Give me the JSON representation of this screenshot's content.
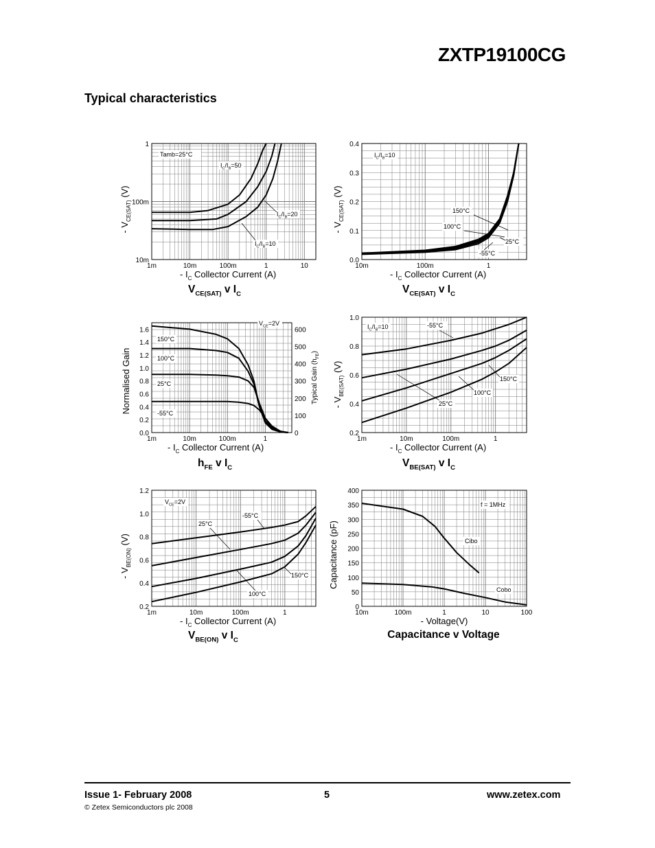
{
  "header": {
    "part_number": "ZXTP19100CG",
    "section_title": "Typical characteristics"
  },
  "footer": {
    "issue": "Issue 1- February 2008",
    "page": "5",
    "website": "www.zetex.com",
    "copyright": "© Zetex Semiconductors plc 2008"
  },
  "chart_data": [
    {
      "id": "vcesat_ic_ratio",
      "type": "line",
      "title": "VCE(SAT) v IC",
      "xlabel": "- IC Collector Current (A)",
      "ylabel": "- VCE(SAT) (V)",
      "xscale": "log",
      "yscale": "log",
      "xlim": [
        0.001,
        20
      ],
      "ylim": [
        0.01,
        1
      ],
      "xticks": [
        [
          "1m",
          0.001
        ],
        [
          "10m",
          0.01
        ],
        [
          "100m",
          0.1
        ],
        [
          "1",
          1
        ],
        [
          "10",
          10
        ]
      ],
      "yticks": [
        [
          "10m",
          0.01
        ],
        [
          "100m",
          0.1
        ],
        [
          "1",
          1
        ]
      ],
      "annotations": [
        "Tamb=25°C",
        "IC/IB=50",
        "IC/IB=20",
        "IC/IB=10"
      ],
      "series": [
        {
          "name": "IC/IB=50",
          "x": [
            0.001,
            0.01,
            0.03,
            0.1,
            0.2,
            0.4,
            0.6,
            0.8,
            1.0
          ],
          "y": [
            0.065,
            0.065,
            0.07,
            0.09,
            0.13,
            0.25,
            0.45,
            0.75,
            1.0
          ]
        },
        {
          "name": "IC/IB=20",
          "x": [
            0.001,
            0.01,
            0.05,
            0.1,
            0.3,
            0.6,
            1.0,
            1.4,
            1.7
          ],
          "y": [
            0.047,
            0.047,
            0.05,
            0.06,
            0.1,
            0.18,
            0.33,
            0.6,
            1.0
          ]
        },
        {
          "name": "IC/IB=10",
          "x": [
            0.001,
            0.01,
            0.04,
            0.1,
            0.3,
            0.6,
            1.0,
            1.5,
            2.0,
            2.5
          ],
          "y": [
            0.034,
            0.033,
            0.033,
            0.037,
            0.055,
            0.08,
            0.13,
            0.25,
            0.5,
            1.0
          ]
        }
      ]
    },
    {
      "id": "vcesat_ic_temp",
      "type": "line",
      "title": "VCE(SAT) v IC",
      "xlabel": "- IC Collector Current (A)",
      "ylabel": "- VCE(SAT) (V)",
      "xscale": "log",
      "yscale": "linear",
      "xlim": [
        0.01,
        4
      ],
      "ylim": [
        0,
        0.4
      ],
      "xticks": [
        [
          "10m",
          0.01
        ],
        [
          "100m",
          0.1
        ],
        [
          "1",
          1
        ]
      ],
      "yticks": [
        [
          "0.0",
          0
        ],
        [
          "0.1",
          0.1
        ],
        [
          "0.2",
          0.2
        ],
        [
          "0.3",
          0.3
        ],
        [
          "0.4",
          0.4
        ]
      ],
      "annotations": [
        "IC/IB=10",
        "150°C",
        "100°C",
        "25°C",
        "-55°C"
      ],
      "series": [
        {
          "name": "150°C",
          "x": [
            0.01,
            0.1,
            0.3,
            0.7,
            1.0,
            1.5,
            2.0,
            2.5,
            3.0
          ],
          "y": [
            0.022,
            0.032,
            0.045,
            0.07,
            0.09,
            0.14,
            0.22,
            0.3,
            0.4
          ]
        },
        {
          "name": "100°C",
          "x": [
            0.01,
            0.1,
            0.3,
            0.7,
            1.0,
            1.5,
            2.0,
            2.5,
            3.0
          ],
          "y": [
            0.021,
            0.03,
            0.042,
            0.065,
            0.085,
            0.135,
            0.215,
            0.3,
            0.4
          ]
        },
        {
          "name": "25°C",
          "x": [
            0.01,
            0.1,
            0.3,
            0.7,
            1.0,
            1.5,
            2.0,
            2.5,
            3.0
          ],
          "y": [
            0.02,
            0.028,
            0.038,
            0.06,
            0.08,
            0.13,
            0.21,
            0.3,
            0.4
          ]
        },
        {
          "name": "-55°C",
          "x": [
            0.01,
            0.1,
            0.3,
            0.7,
            1.0,
            1.5,
            2.0,
            2.5,
            3.0
          ],
          "y": [
            0.018,
            0.025,
            0.034,
            0.055,
            0.075,
            0.125,
            0.2,
            0.29,
            0.4
          ]
        }
      ]
    },
    {
      "id": "hfe_ic",
      "type": "line",
      "title": "hFE v IC",
      "xlabel": "- IC Collector Current (A)",
      "ylabel": "Normalised Gain",
      "y2label": "Typical Gain (hFE)",
      "xscale": "log",
      "yscale": "linear",
      "xlim": [
        0.001,
        5
      ],
      "ylim": [
        0,
        1.7
      ],
      "y2lim": [
        0,
        637.5
      ],
      "xticks": [
        [
          "1m",
          0.001
        ],
        [
          "10m",
          0.01
        ],
        [
          "100m",
          0.1
        ],
        [
          "1",
          1
        ]
      ],
      "yticks": [
        [
          "0.0",
          0
        ],
        [
          "0.2",
          0.2
        ],
        [
          "0.4",
          0.4
        ],
        [
          "0.6",
          0.6
        ],
        [
          "0.8",
          0.8
        ],
        [
          "1.0",
          1.0
        ],
        [
          "1.2",
          1.2
        ],
        [
          "1.4",
          1.4
        ],
        [
          "1.6",
          1.6
        ]
      ],
      "y2ticks": [
        [
          "0",
          0
        ],
        [
          "100",
          0.2667
        ],
        [
          "200",
          0.5333
        ],
        [
          "300",
          0.8
        ],
        [
          "400",
          1.0667
        ],
        [
          "500",
          1.3333
        ],
        [
          "600",
          1.6
        ]
      ],
      "annotations": [
        "VCE=2V",
        "150°C",
        "100°C",
        "25°C",
        "-55°C"
      ],
      "series": [
        {
          "name": "150°C",
          "x": [
            0.001,
            0.01,
            0.05,
            0.1,
            0.2,
            0.35,
            0.5,
            0.7,
            1.0,
            1.5,
            2.5,
            4.0
          ],
          "y": [
            1.65,
            1.6,
            1.52,
            1.45,
            1.3,
            1.05,
            0.8,
            0.4,
            0.15,
            0.05,
            0.01,
            0.0
          ]
        },
        {
          "name": "100°C",
          "x": [
            0.001,
            0.01,
            0.05,
            0.1,
            0.2,
            0.35,
            0.5,
            0.7,
            1.0,
            1.5,
            2.5,
            4.0
          ],
          "y": [
            1.3,
            1.3,
            1.27,
            1.24,
            1.15,
            0.95,
            0.75,
            0.4,
            0.18,
            0.06,
            0.01,
            0.0
          ]
        },
        {
          "name": "25°C",
          "x": [
            0.001,
            0.01,
            0.05,
            0.1,
            0.2,
            0.35,
            0.5,
            0.7,
            1.0,
            1.5,
            2.5,
            4.0
          ],
          "y": [
            0.9,
            0.9,
            0.89,
            0.88,
            0.86,
            0.8,
            0.7,
            0.45,
            0.22,
            0.08,
            0.02,
            0.0
          ]
        },
        {
          "name": "-55°C",
          "x": [
            0.001,
            0.01,
            0.05,
            0.1,
            0.2,
            0.35,
            0.5,
            0.7,
            1.0,
            1.5,
            2.5,
            4.0
          ],
          "y": [
            0.48,
            0.48,
            0.48,
            0.48,
            0.47,
            0.45,
            0.42,
            0.35,
            0.22,
            0.1,
            0.02,
            0.0
          ]
        }
      ]
    },
    {
      "id": "vbesat_ic",
      "type": "line",
      "title": "VBE(SAT) v IC",
      "xlabel": "- IC Collector Current (A)",
      "ylabel": "- VBE(SAT) (V)",
      "xscale": "log",
      "yscale": "linear",
      "xlim": [
        0.001,
        5
      ],
      "ylim": [
        0.2,
        1.0
      ],
      "xticks": [
        [
          "1m",
          0.001
        ],
        [
          "10m",
          0.01
        ],
        [
          "100m",
          0.1
        ],
        [
          "1",
          1
        ]
      ],
      "yticks": [
        [
          "0.2",
          0.2
        ],
        [
          "0.4",
          0.4
        ],
        [
          "0.6",
          0.6
        ],
        [
          "0.8",
          0.8
        ],
        [
          "1.0",
          1.0
        ]
      ],
      "annotations": [
        "IC/IB=10",
        "-55°C",
        "25°C",
        "100°C",
        "150°C"
      ],
      "series": [
        {
          "name": "-55°C",
          "x": [
            0.001,
            0.01,
            0.1,
            0.5,
            1,
            2,
            5
          ],
          "y": [
            0.74,
            0.78,
            0.84,
            0.89,
            0.92,
            0.95,
            1.0
          ]
        },
        {
          "name": "25°C",
          "x": [
            0.001,
            0.01,
            0.1,
            0.5,
            1,
            2,
            5
          ],
          "y": [
            0.58,
            0.64,
            0.71,
            0.77,
            0.8,
            0.84,
            0.91
          ]
        },
        {
          "name": "100°C",
          "x": [
            0.001,
            0.01,
            0.1,
            0.5,
            1,
            2,
            5
          ],
          "y": [
            0.42,
            0.51,
            0.61,
            0.68,
            0.72,
            0.77,
            0.85
          ]
        },
        {
          "name": "150°C",
          "x": [
            0.001,
            0.01,
            0.1,
            0.5,
            1,
            2,
            5
          ],
          "y": [
            0.27,
            0.37,
            0.48,
            0.57,
            0.62,
            0.68,
            0.79
          ]
        }
      ]
    },
    {
      "id": "vbeon_ic",
      "type": "line",
      "title": "VBE(ON) v IC",
      "xlabel": "- IC Collector Current (A)",
      "ylabel": "- VBE(ON) (V)",
      "xscale": "log",
      "yscale": "linear",
      "xlim": [
        0.001,
        5
      ],
      "ylim": [
        0.2,
        1.2
      ],
      "xticks": [
        [
          "1m",
          0.001
        ],
        [
          "10m",
          0.01
        ],
        [
          "100m",
          0.1
        ],
        [
          "1",
          1
        ]
      ],
      "yticks": [
        [
          "0.2",
          0.2
        ],
        [
          "0.4",
          0.4
        ],
        [
          "0.6",
          0.6
        ],
        [
          "0.8",
          0.8
        ],
        [
          "1.0",
          1.0
        ],
        [
          "1.2",
          1.2
        ]
      ],
      "annotations": [
        "VCE=2V",
        "-55°C",
        "25°C",
        "100°C",
        "150°C"
      ],
      "series": [
        {
          "name": "-55°C",
          "x": [
            0.001,
            0.01,
            0.1,
            0.5,
            1,
            2,
            3,
            5
          ],
          "y": [
            0.74,
            0.79,
            0.84,
            0.88,
            0.9,
            0.93,
            0.98,
            1.06
          ]
        },
        {
          "name": "25°C",
          "x": [
            0.001,
            0.01,
            0.1,
            0.5,
            1,
            2,
            3,
            5
          ],
          "y": [
            0.55,
            0.62,
            0.69,
            0.74,
            0.77,
            0.83,
            0.9,
            1.01
          ]
        },
        {
          "name": "100°C",
          "x": [
            0.001,
            0.01,
            0.1,
            0.5,
            1,
            2,
            3,
            5
          ],
          "y": [
            0.37,
            0.44,
            0.52,
            0.58,
            0.63,
            0.72,
            0.81,
            0.96
          ]
        },
        {
          "name": "150°C",
          "x": [
            0.001,
            0.01,
            0.1,
            0.5,
            1,
            2,
            3,
            5
          ],
          "y": [
            0.24,
            0.32,
            0.41,
            0.48,
            0.54,
            0.65,
            0.75,
            0.9
          ]
        }
      ]
    },
    {
      "id": "cap_voltage",
      "type": "line",
      "title": "Capacitance v Voltage",
      "xlabel": "- Voltage(V)",
      "ylabel": "Capacitance (pF)",
      "xscale": "log",
      "yscale": "linear",
      "xlim": [
        0.01,
        100
      ],
      "ylim": [
        0,
        400
      ],
      "xticks": [
        [
          "10m",
          0.01
        ],
        [
          "100m",
          0.1
        ],
        [
          "1",
          1
        ],
        [
          "10",
          10
        ],
        [
          "100",
          100
        ]
      ],
      "yticks": [
        [
          "0",
          0
        ],
        [
          "50",
          50
        ],
        [
          "100",
          100
        ],
        [
          "150",
          150
        ],
        [
          "200",
          200
        ],
        [
          "250",
          250
        ],
        [
          "300",
          300
        ],
        [
          "350",
          350
        ],
        [
          "400",
          400
        ]
      ],
      "annotations": [
        "f = 1MHz",
        "Cibo",
        "Cobo"
      ],
      "series": [
        {
          "name": "Cibo",
          "x": [
            0.01,
            0.1,
            0.3,
            0.6,
            1,
            2,
            4,
            7
          ],
          "y": [
            355,
            335,
            310,
            275,
            235,
            185,
            145,
            115
          ]
        },
        {
          "name": "Cobo",
          "x": [
            0.01,
            0.1,
            0.5,
            1,
            3,
            10,
            30,
            100
          ],
          "y": [
            80,
            75,
            67,
            60,
            45,
            30,
            15,
            5
          ]
        }
      ]
    }
  ]
}
